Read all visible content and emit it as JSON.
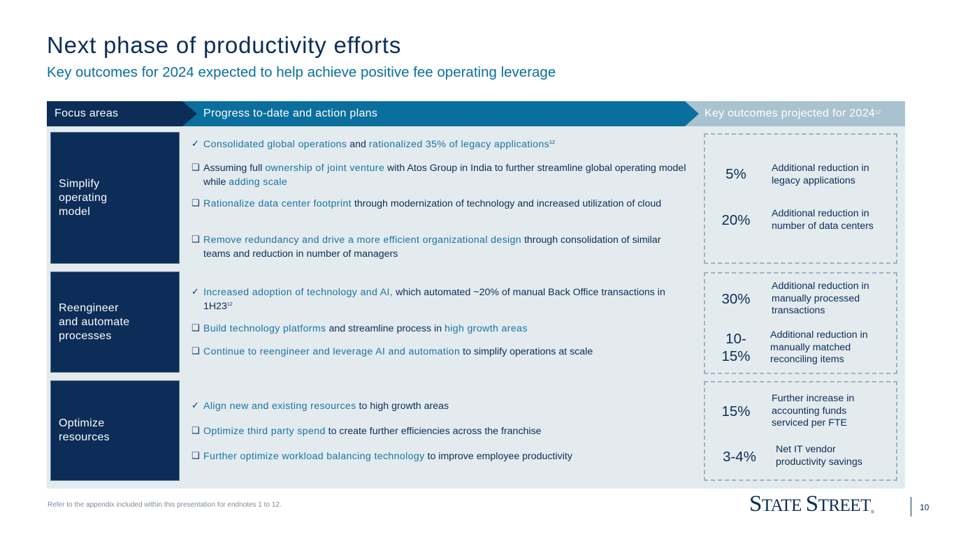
{
  "title": "Next phase of productivity efforts",
  "subtitle": "Key outcomes for 2024 expected to help achieve positive fee operating leverage",
  "headers": {
    "focus": "Focus areas",
    "progress": "Progress to-date and action plans",
    "key": "Key outcomes projected for 2024",
    "key_sup": "12"
  },
  "rows": [
    {
      "focus": "Simplify\noperating\nmodel",
      "bullets": [
        {
          "mark": "✓",
          "parts": [
            {
              "t": "Consolidated global operations",
              "hl": true
            },
            {
              "t": " and ",
              "hl": false
            },
            {
              "t": "rationalized 35% of legacy applications",
              "hl": true
            },
            {
              "t": "12",
              "sup": true
            }
          ]
        },
        {
          "mark": "❑",
          "parts": [
            {
              "t": "Assuming full ",
              "hl": false
            },
            {
              "t": "ownership of joint venture",
              "hl": true
            },
            {
              "t": " with Atos Group in India to further streamline global operating model while ",
              "hl": false
            },
            {
              "t": "adding scale",
              "hl": true
            }
          ]
        },
        {
          "mark": "❑",
          "parts": [
            {
              "t": "Rationalize data center footprint",
              "hl": true
            },
            {
              "t": " through modernization of technology and increased utilization of cloud",
              "hl": false
            }
          ]
        },
        {
          "mark": "❑",
          "parts": [
            {
              "t": "Remove redundancy and drive a more efficient organizational design",
              "hl": true
            },
            {
              "t": " through consolidation of similar teams and reduction in number of managers",
              "hl": false
            }
          ]
        }
      ],
      "outcomes": [
        {
          "pct": "5%",
          "desc": "Additional reduction in\nlegacy applications"
        },
        {
          "pct": "20%",
          "desc": "Additional reduction in\nnumber of data centers"
        }
      ]
    },
    {
      "focus": "Reengineer\nand automate\nprocesses",
      "bullets": [
        {
          "mark": "✓",
          "parts": [
            {
              "t": "Increased adoption of technology and AI,",
              "hl": true
            },
            {
              "t": " which automated ~20% of manual Back Office transactions in 1H23",
              "hl": false
            },
            {
              "t": "12",
              "sup": true
            }
          ]
        },
        {
          "mark": "❑",
          "parts": [
            {
              "t": "Build technology platforms",
              "hl": true
            },
            {
              "t": " and streamline process in ",
              "hl": false
            },
            {
              "t": "high growth areas",
              "hl": true
            }
          ]
        },
        {
          "mark": "❑",
          "parts": [
            {
              "t": "Continue to reengineer and leverage AI and automation",
              "hl": true
            },
            {
              "t": " to simplify operations at scale",
              "hl": false
            }
          ]
        }
      ],
      "outcomes": [
        {
          "pct": "30%",
          "desc": "Additional reduction in\nmanually processed\ntransactions"
        },
        {
          "pct": "10-\n15%",
          "desc": "Additional reduction in\nmanually matched\nreconciling items"
        }
      ]
    },
    {
      "focus": "Optimize\nresources",
      "bullets": [
        {
          "mark": "✓",
          "parts": [
            {
              "t": "Align new and existing resources",
              "hl": true
            },
            {
              "t": " to high growth areas",
              "hl": false
            }
          ]
        },
        {
          "mark": "❑",
          "parts": [
            {
              "t": "Optimize third party spend",
              "hl": true
            },
            {
              "t": " to create further efficiencies across the franchise",
              "hl": false
            }
          ]
        },
        {
          "mark": "❑",
          "parts": [
            {
              "t": "Further optimize workload balancing technology",
              "hl": true
            },
            {
              "t": " to improve employee productivity",
              "hl": false
            }
          ]
        }
      ],
      "outcomes": [
        {
          "pct": "15%",
          "desc": "Further increase in\naccounting funds\nserviced per FTE"
        },
        {
          "pct": "3-4%",
          "desc": "Net IT vendor\nproductivity savings"
        }
      ]
    }
  ],
  "footnote": "Refer to the appendix included within this presentation for endnotes 1 to 12.",
  "logo": {
    "s1": "S",
    "r1": "TATE ",
    "s2": "S",
    "r2": "TREET",
    "reg": "®"
  },
  "page_number": "10",
  "colors": {
    "navy": "#0b2d57",
    "teal": "#0a6f9e",
    "highlight": "#1a74a3",
    "panel": "#e4ebef",
    "header_light": "#a9c2cf"
  }
}
